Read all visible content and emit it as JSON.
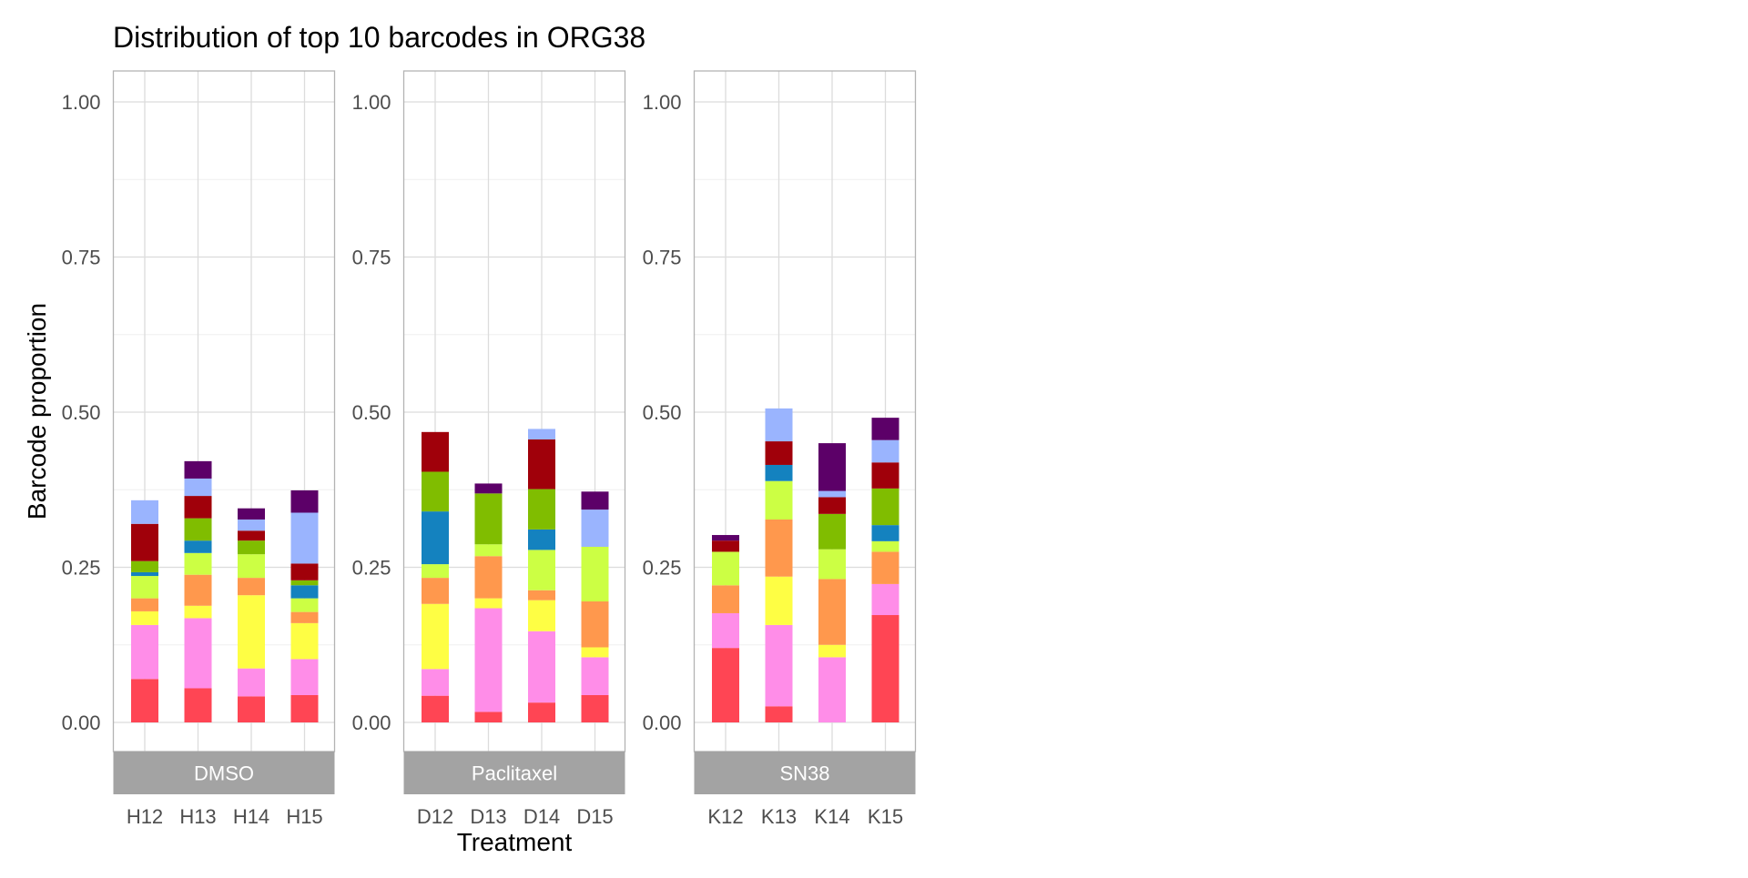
{
  "chart_data": {
    "type": "bar",
    "stacked": true,
    "title": "Distribution of top 10 barcodes in ORG38",
    "xlabel": "Treatment",
    "ylabel": "Barcode proportion",
    "ylim": [
      0,
      1
    ],
    "yticks": [
      "0.00",
      "0.25",
      "0.50",
      "0.75",
      "1.00"
    ],
    "grid": true,
    "legend": "none",
    "colors": [
      "#ff4554",
      "#ff8de8",
      "#fefe44",
      "#ff984d",
      "#ccff44",
      "#1482bf",
      "#80bd00",
      "#a0000a",
      "#9ab4fe",
      "#5c0068"
    ],
    "panels": [
      {
        "label": "DMSO",
        "categories": [
          "H12",
          "H13",
          "H14",
          "H15"
        ],
        "stacks": [
          [
            0.07,
            0.087,
            0.022,
            0.021,
            0.036,
            0.006,
            0.018,
            0.06,
            0.038,
            0.0
          ],
          [
            0.055,
            0.113,
            0.02,
            0.05,
            0.035,
            0.02,
            0.036,
            0.036,
            0.028,
            0.028
          ],
          [
            0.042,
            0.045,
            0.118,
            0.028,
            0.038,
            0.0,
            0.022,
            0.016,
            0.018,
            0.018
          ],
          [
            0.044,
            0.058,
            0.058,
            0.018,
            0.022,
            0.021,
            0.008,
            0.027,
            0.082,
            0.036
          ]
        ]
      },
      {
        "label": "Paclitaxel",
        "categories": [
          "D12",
          "D13",
          "D14",
          "D15"
        ],
        "stacks": [
          [
            0.043,
            0.043,
            0.105,
            0.042,
            0.022,
            0.085,
            0.064,
            0.064,
            0.0,
            0.0
          ],
          [
            0.017,
            0.167,
            0.016,
            0.068,
            0.019,
            0.0,
            0.082,
            0.0,
            0.0,
            0.016
          ],
          [
            0.032,
            0.115,
            0.05,
            0.016,
            0.065,
            0.033,
            0.065,
            0.08,
            0.017,
            0.0
          ],
          [
            0.044,
            0.061,
            0.016,
            0.074,
            0.088,
            0.0,
            0.0,
            0.0,
            0.06,
            0.029
          ]
        ]
      },
      {
        "label": "SN38",
        "categories": [
          "K12",
          "K13",
          "K14",
          "K15"
        ],
        "stacks": [
          [
            0.12,
            0.056,
            0.0,
            0.045,
            0.054,
            0.0,
            0.0,
            0.018,
            0.0,
            0.009
          ],
          [
            0.026,
            0.131,
            0.078,
            0.092,
            0.062,
            0.026,
            0.0,
            0.038,
            0.053,
            0.0
          ],
          [
            0.0,
            0.105,
            0.02,
            0.106,
            0.048,
            0.0,
            0.057,
            0.027,
            0.01,
            0.077
          ],
          [
            0.173,
            0.05,
            0.0,
            0.052,
            0.017,
            0.026,
            0.059,
            0.042,
            0.036,
            0.036
          ]
        ]
      }
    ]
  }
}
